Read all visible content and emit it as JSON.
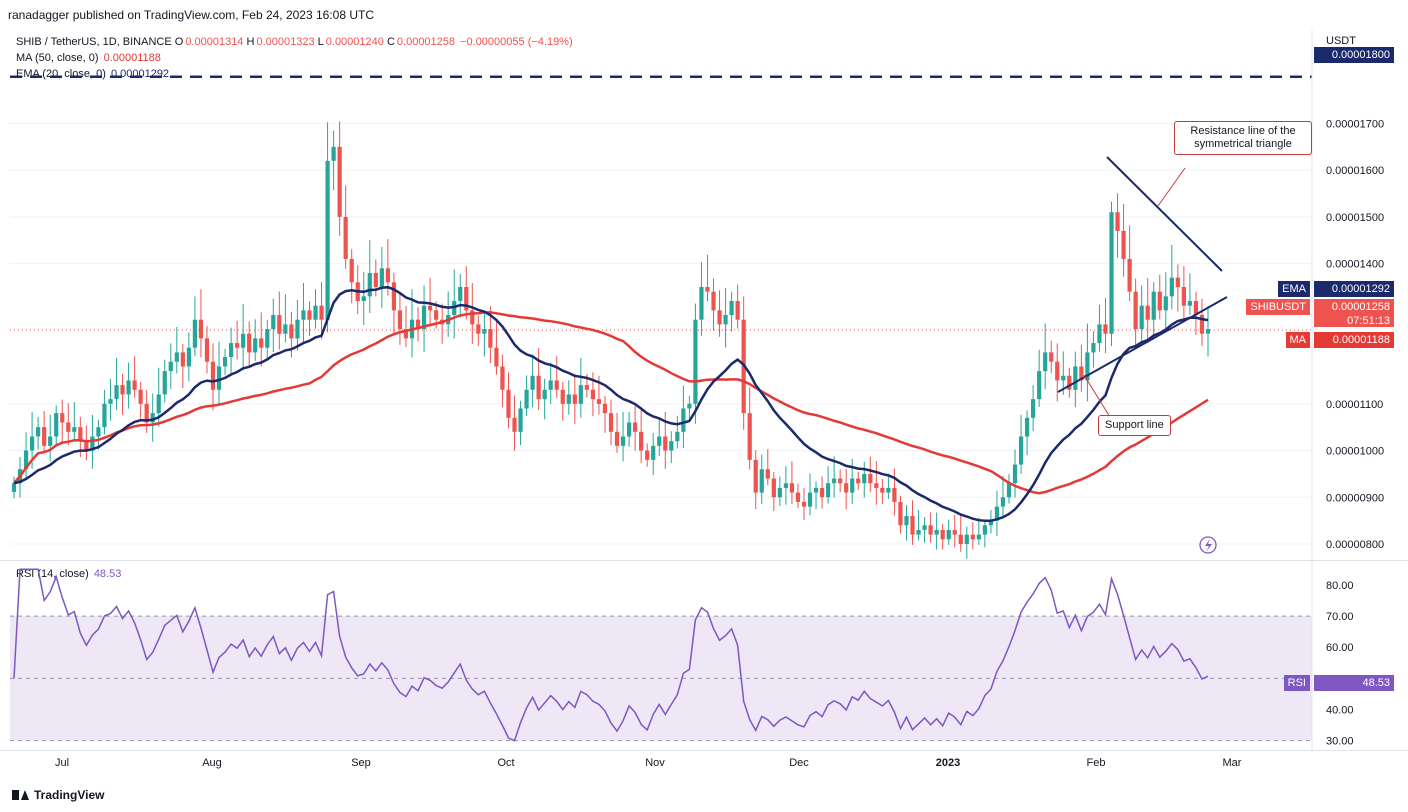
{
  "header": {
    "publisher": "ranadagger published on TradingView.com, Feb 24, 2023 16:08 UTC"
  },
  "legend": {
    "symbol": "SHIB / TetherUS, 1D, BINANCE",
    "o_label": "O",
    "o": "0.00001314",
    "h_label": "H",
    "h": "0.00001323",
    "l_label": "L",
    "l": "0.00001240",
    "c_label": "C",
    "c": "0.00001258",
    "change": "−0.00000055 (−4.19%)",
    "ma_label": "MA (50, close, 0)",
    "ma_value": "0.00001188",
    "ema_label": "EMA (20, close, 0)",
    "ema_value": "0.00001292",
    "rsi_label": "RSI (14, close)",
    "rsi_value": "48.53"
  },
  "price_tags": {
    "top_level": "0.00001800",
    "ema_name": "EMA",
    "ema_value": "0.00001292",
    "symbol_name": "SHIBUSDT",
    "last_value": "0.00001258",
    "countdown": "07:51:13",
    "ma_name": "MA",
    "ma_value": "0.00001188",
    "rsi_name": "RSI",
    "rsi_value": "48.53"
  },
  "annotations": {
    "resistance": "Resistance line of the symmetrical triangle",
    "support": "Support line"
  },
  "footer": {
    "brand": "TradingView"
  },
  "colors": {
    "up": "#26a69a",
    "down": "#ef5350",
    "ema": "#1a2a6c",
    "ma": "#e53935",
    "rsi": "#7e57c2",
    "band": "#ede7f6",
    "trend": "#1a2a6c"
  },
  "chart_data": [
    {
      "type": "candlestick",
      "y_axis_unit": "USDT",
      "y_ticks": [
        "0.00001700",
        "0.00001600",
        "0.00001500",
        "0.00001400",
        "0.00001100",
        "0.00001000",
        "0.00000900",
        "0.00000800"
      ],
      "x_ticks": [
        "Jul",
        "Aug",
        "Sep",
        "Oct",
        "Nov",
        "Dec",
        "2023",
        "Feb",
        "Mar"
      ],
      "ylim": [
        7.7e-06,
        1.9e-05
      ],
      "horizontal_level": 1.8e-05,
      "last_close": 1.258e-05,
      "series_close": [
        9.3e-06,
        9.6e-06,
        1e-05,
        1.03e-05,
        1.05e-05,
        1.01e-05,
        1.03e-05,
        1.08e-05,
        1.06e-05,
        1.04e-05,
        1.05e-05,
        1.02e-05,
        1e-05,
        1.03e-05,
        1.05e-05,
        1.1e-05,
        1.11e-05,
        1.14e-05,
        1.12e-05,
        1.15e-05,
        1.13e-05,
        1.1e-05,
        1.06e-05,
        1.08e-05,
        1.12e-05,
        1.17e-05,
        1.19e-05,
        1.21e-05,
        1.18e-05,
        1.22e-05,
        1.28e-05,
        1.24e-05,
        1.19e-05,
        1.13e-05,
        1.18e-05,
        1.2e-05,
        1.23e-05,
        1.22e-05,
        1.25e-05,
        1.21e-05,
        1.24e-05,
        1.22e-05,
        1.26e-05,
        1.29e-05,
        1.25e-05,
        1.27e-05,
        1.24e-05,
        1.28e-05,
        1.3e-05,
        1.28e-05,
        1.31e-05,
        1.28e-05,
        1.62e-05,
        1.65e-05,
        1.5e-05,
        1.41e-05,
        1.36e-05,
        1.32e-05,
        1.33e-05,
        1.38e-05,
        1.35e-05,
        1.39e-05,
        1.36e-05,
        1.3e-05,
        1.26e-05,
        1.24e-05,
        1.28e-05,
        1.26e-05,
        1.31e-05,
        1.3e-05,
        1.28e-05,
        1.27e-05,
        1.29e-05,
        1.32e-05,
        1.35e-05,
        1.3e-05,
        1.27e-05,
        1.25e-05,
        1.26e-05,
        1.22e-05,
        1.18e-05,
        1.13e-05,
        1.07e-05,
        1.04e-05,
        1.09e-05,
        1.13e-05,
        1.16e-05,
        1.11e-05,
        1.13e-05,
        1.15e-05,
        1.13e-05,
        1.1e-05,
        1.12e-05,
        1.1e-05,
        1.14e-05,
        1.13e-05,
        1.11e-05,
        1.1e-05,
        1.08e-05,
        1.04e-05,
        1.01e-05,
        1.03e-05,
        1.06e-05,
        1.04e-05,
        1e-05,
        9.8e-06,
        1.01e-05,
        1.03e-05,
        1e-05,
        1.02e-05,
        1.04e-05,
        1.09e-05,
        1.1e-05,
        1.28e-05,
        1.35e-05,
        1.34e-05,
        1.3e-05,
        1.27e-05,
        1.29e-05,
        1.32e-05,
        1.28e-05,
        1.08e-05,
        9.8e-06,
        9.1e-06,
        9.6e-06,
        9.4e-06,
        9e-06,
        9.2e-06,
        9.3e-06,
        9.1e-06,
        8.9e-06,
        8.8e-06,
        9.1e-06,
        9.2e-06,
        9e-06,
        9.3e-06,
        9.4e-06,
        9.3e-06,
        9.1e-06,
        9.4e-06,
        9.3e-06,
        9.5e-06,
        9.3e-06,
        9.2e-06,
        9.1e-06,
        9.2e-06,
        8.9e-06,
        8.4e-06,
        8.6e-06,
        8.2e-06,
        8.3e-06,
        8.4e-06,
        8.2e-06,
        8.3e-06,
        8.1e-06,
        8.3e-06,
        8.2e-06,
        8e-06,
        8.2e-06,
        8.1e-06,
        8.2e-06,
        8.4e-06,
        8.5e-06,
        8.8e-06,
        9e-06,
        9.3e-06,
        9.7e-06,
        1.03e-05,
        1.07e-05,
        1.11e-05,
        1.17e-05,
        1.21e-05,
        1.19e-05,
        1.15e-05,
        1.16e-05,
        1.13e-05,
        1.18e-05,
        1.15e-05,
        1.21e-05,
        1.23e-05,
        1.27e-05,
        1.25e-05,
        1.51e-05,
        1.47e-05,
        1.41e-05,
        1.34e-05,
        1.26e-05,
        1.31e-05,
        1.28e-05,
        1.34e-05,
        1.3e-05,
        1.33e-05,
        1.37e-05,
        1.35e-05,
        1.31e-05,
        1.32e-05,
        1.29e-05,
        1.25e-05,
        1.26e-05
      ],
      "ema20": {
        "name": "EMA",
        "value": 1.292e-05
      },
      "ma50": {
        "name": "MA",
        "value": 1.188e-05
      }
    },
    {
      "type": "line",
      "name": "RSI",
      "y_ticks": [
        "80.00",
        "70.00",
        "60.00",
        "40.00",
        "30.00"
      ],
      "ylim": [
        27,
        88
      ],
      "band": [
        30,
        70
      ],
      "midline": 50,
      "last_value": 48.53
    }
  ]
}
